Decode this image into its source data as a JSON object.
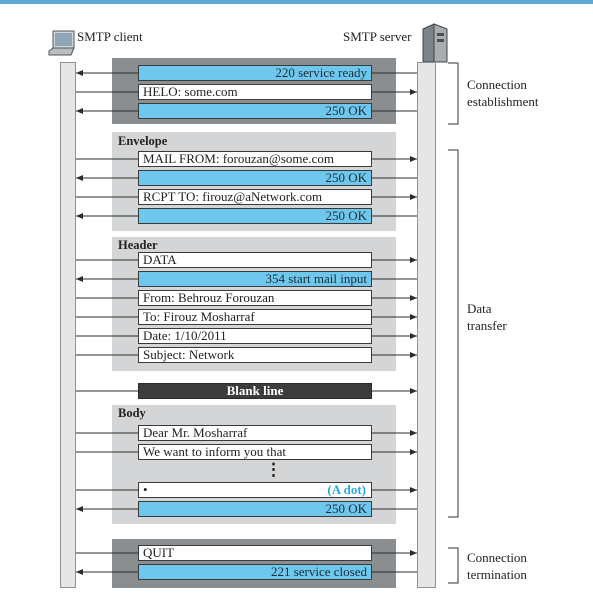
{
  "client": {
    "title": "SMTP client",
    "icon": "laptop-icon"
  },
  "server": {
    "title": "SMTP server",
    "icon": "server-tower-icon"
  },
  "sections": {
    "envelope": "Envelope",
    "header": "Header",
    "body": "Body"
  },
  "messages": [
    {
      "id": "m220",
      "text": "220 service ready",
      "dir": "server-to-client",
      "style": "blue"
    },
    {
      "id": "mhelo",
      "text": "HELO: some.com",
      "dir": "client-to-server",
      "style": "white"
    },
    {
      "id": "m250a",
      "text": "250 OK",
      "dir": "server-to-client",
      "style": "blue"
    },
    {
      "id": "mmail",
      "text": "MAIL FROM: forouzan@some.com",
      "dir": "client-to-server",
      "style": "white"
    },
    {
      "id": "m250b",
      "text": "250 OK",
      "dir": "server-to-client",
      "style": "blue"
    },
    {
      "id": "mrcpt",
      "text": "RCPT TO: firouz@aNetwork.com",
      "dir": "client-to-server",
      "style": "white"
    },
    {
      "id": "m250c",
      "text": "250 OK",
      "dir": "server-to-client",
      "style": "blue"
    },
    {
      "id": "mdata",
      "text": "DATA",
      "dir": "client-to-server",
      "style": "white"
    },
    {
      "id": "m354",
      "text": "354 start mail input",
      "dir": "server-to-client",
      "style": "blue"
    },
    {
      "id": "mfrom",
      "text": "From: Behrouz Forouzan",
      "dir": "client-to-server",
      "style": "white"
    },
    {
      "id": "mto",
      "text": "To: Firouz Mosharraf",
      "dir": "client-to-server",
      "style": "white"
    },
    {
      "id": "mdate",
      "text": "Date: 1/10/2011",
      "dir": "client-to-server",
      "style": "white"
    },
    {
      "id": "msubj",
      "text": "Subject: Network",
      "dir": "client-to-server",
      "style": "white"
    },
    {
      "id": "mblank",
      "text": "Blank line",
      "dir": "client-to-server",
      "style": "dark"
    },
    {
      "id": "mdear",
      "text": "Dear Mr. Mosharraf",
      "dir": "client-to-server",
      "style": "white"
    },
    {
      "id": "mwant",
      "text": "We want to inform you that",
      "dir": "client-to-server",
      "style": "white"
    },
    {
      "id": "mdot",
      "text": "•",
      "note": "(A dot)",
      "dir": "client-to-server",
      "style": "white"
    },
    {
      "id": "m250d",
      "text": "250 OK",
      "dir": "server-to-client",
      "style": "blue"
    },
    {
      "id": "mquit",
      "text": "QUIT",
      "dir": "client-to-server",
      "style": "white"
    },
    {
      "id": "m221",
      "text": "221 service closed",
      "dir": "server-to-client",
      "style": "blue"
    }
  ],
  "ellipsis": "⋮",
  "phases": [
    {
      "name": "Connection establishment",
      "lines": [
        "Connection",
        "establishment"
      ]
    },
    {
      "name": "Data transfer",
      "lines": [
        "Data",
        "transfer"
      ]
    },
    {
      "name": "Connection termination",
      "lines": [
        "Connection",
        "termination"
      ]
    }
  ],
  "colors": {
    "accent_line": "#5fa8d3",
    "response_fill": "#6ec8ee",
    "command_fill": "#ffffff",
    "panel_light": "#d3d5d6",
    "panel_dark": "#8b8e90",
    "blank_line_fill": "#3c3c3c",
    "dot_note": "#2ea7dd"
  }
}
